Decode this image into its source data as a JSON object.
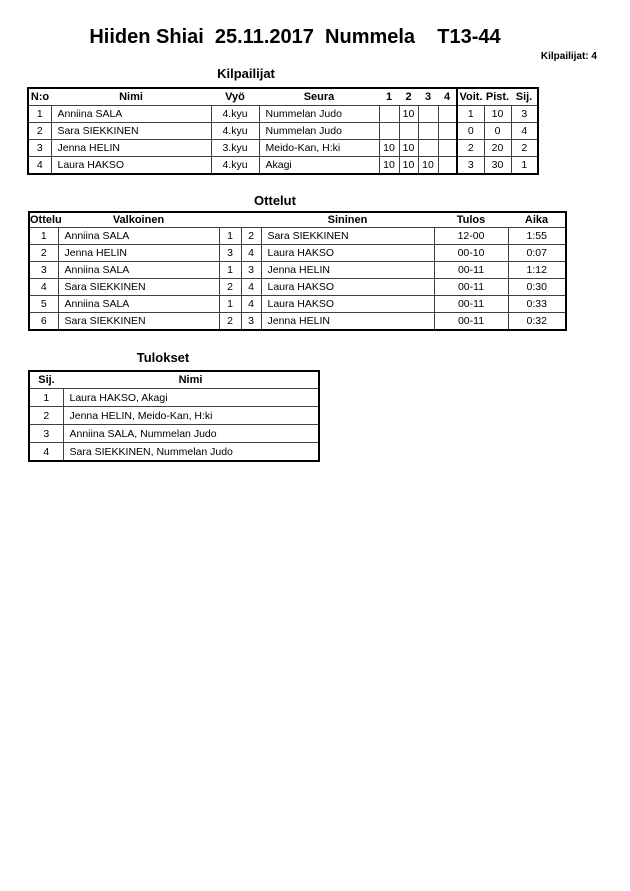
{
  "page": {
    "title": "Hiiden Shiai  25.11.2017  Nummela    T13-44",
    "participants_label": "Kilpailijat: 4"
  },
  "competitors": {
    "heading": "Kilpailijat",
    "columns": [
      "N:o",
      "Nimi",
      "Vyö",
      "Seura",
      "1",
      "2",
      "3",
      "4",
      "Voit.",
      "Pist.",
      "Sij."
    ],
    "rows": [
      {
        "no": "1",
        "name": "Anniina SALA",
        "belt": "4.kyu",
        "club": "Nummelan Judo",
        "s1": "",
        "s2": "10",
        "s3": "",
        "s4": "",
        "wins": "1",
        "points": "10",
        "place": "3"
      },
      {
        "no": "2",
        "name": "Sara SIEKKINEN",
        "belt": "4.kyu",
        "club": "Nummelan Judo",
        "s1": "",
        "s2": "",
        "s3": "",
        "s4": "",
        "wins": "0",
        "points": "0",
        "place": "4"
      },
      {
        "no": "3",
        "name": "Jenna HELIN",
        "belt": "3.kyu",
        "club": "Meido-Kan, H:ki",
        "s1": "10",
        "s2": "10",
        "s3": "",
        "s4": "",
        "wins": "2",
        "points": "20",
        "place": "2"
      },
      {
        "no": "4",
        "name": "Laura HAKSO",
        "belt": "4.kyu",
        "club": "Akagi",
        "s1": "10",
        "s2": "10",
        "s3": "10",
        "s4": "",
        "wins": "3",
        "points": "30",
        "place": "1"
      }
    ]
  },
  "matches": {
    "heading": "Ottelut",
    "columns": [
      "Ottelu",
      "Valkoinen",
      "Sininen",
      "Tulos",
      "Aika"
    ],
    "rows": [
      {
        "no": "1",
        "white": "Anniina SALA",
        "white_no": "1",
        "blue_no": "2",
        "blue": "Sara SIEKKINEN",
        "score": "12-00",
        "time": "1:55"
      },
      {
        "no": "2",
        "white": "Jenna HELIN",
        "white_no": "3",
        "blue_no": "4",
        "blue": "Laura HAKSO",
        "score": "00-10",
        "time": "0:07"
      },
      {
        "no": "3",
        "white": "Anniina SALA",
        "white_no": "1",
        "blue_no": "3",
        "blue": "Jenna HELIN",
        "score": "00-11",
        "time": "1:12"
      },
      {
        "no": "4",
        "white": "Sara SIEKKINEN",
        "white_no": "2",
        "blue_no": "4",
        "blue": "Laura HAKSO",
        "score": "00-11",
        "time": "0:30"
      },
      {
        "no": "5",
        "white": "Anniina SALA",
        "white_no": "1",
        "blue_no": "4",
        "blue": "Laura HAKSO",
        "score": "00-11",
        "time": "0:33"
      },
      {
        "no": "6",
        "white": "Sara SIEKKINEN",
        "white_no": "2",
        "blue_no": "3",
        "blue": "Jenna HELIN",
        "score": "00-11",
        "time": "0:32"
      }
    ]
  },
  "results": {
    "heading": "Tulokset",
    "columns": [
      "Sij.",
      "Nimi"
    ],
    "rows": [
      {
        "place": "1",
        "name": "Laura HAKSO, Akagi"
      },
      {
        "place": "2",
        "name": "Jenna HELIN, Meido-Kan, H:ki"
      },
      {
        "place": "3",
        "name": "Anniina SALA, Nummelan Judo"
      },
      {
        "place": "4",
        "name": "Sara SIEKKINEN, Nummelan Judo"
      }
    ]
  }
}
